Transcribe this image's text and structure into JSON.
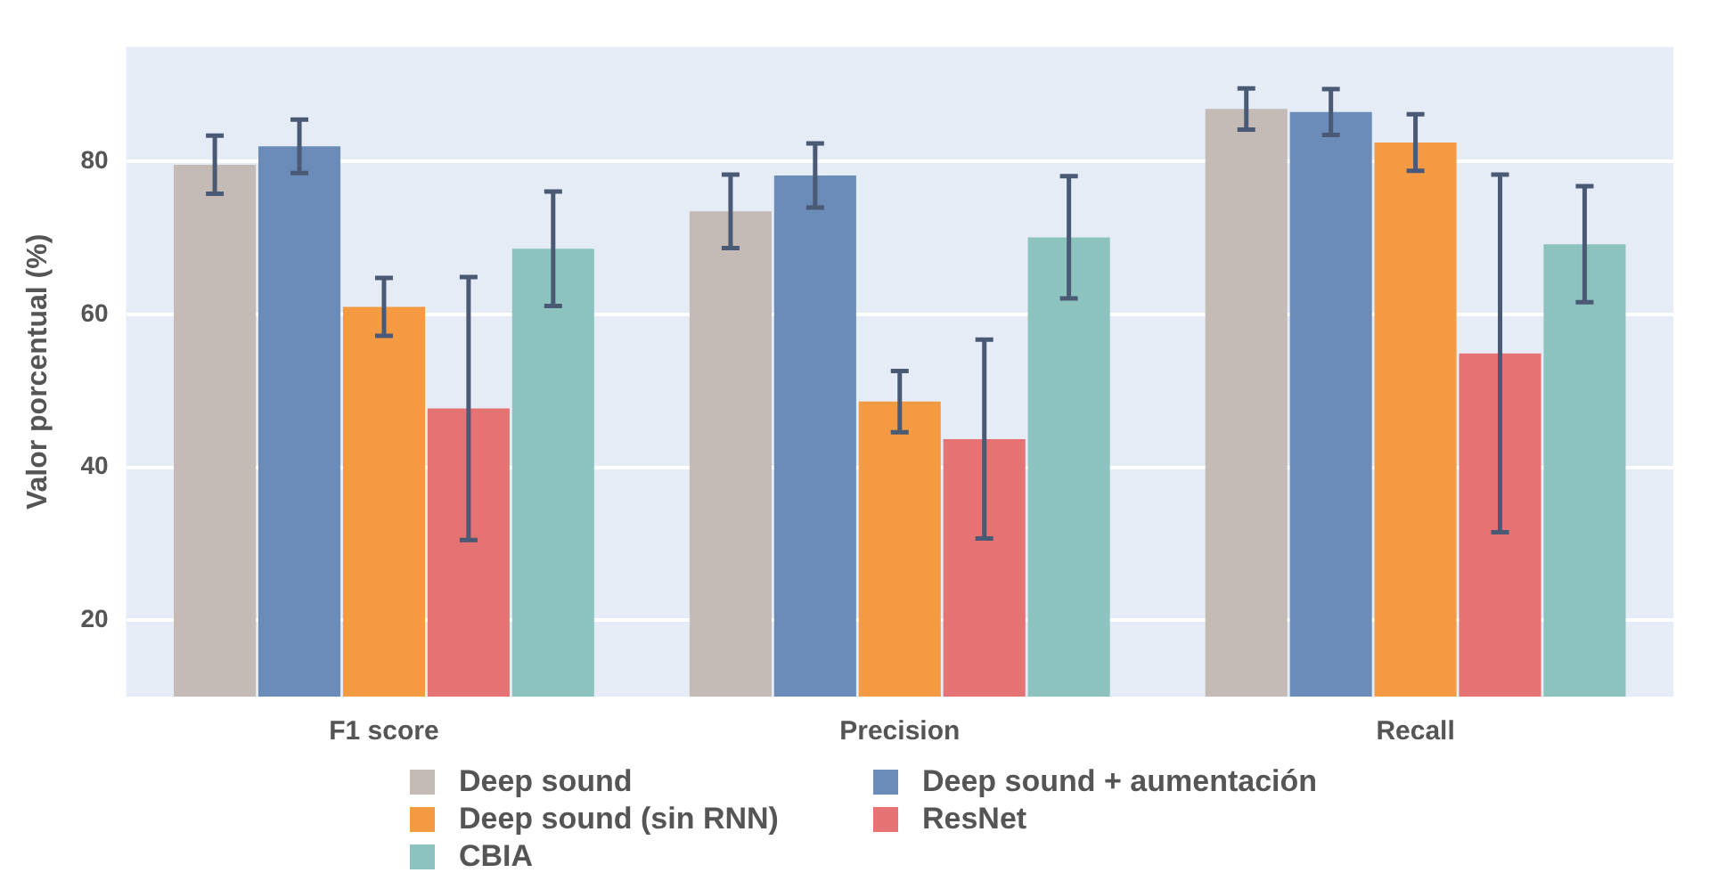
{
  "chart_data": {
    "type": "bar",
    "ylabel": "Valor porcentual (%)",
    "categories": [
      "F1 score",
      "Precision",
      "Recall"
    ],
    "series": [
      {
        "name": "Deep sound",
        "color": "#c4bab6",
        "values": [
          79.6,
          73.5,
          86.9
        ],
        "errors": [
          3.8,
          4.8,
          2.7
        ]
      },
      {
        "name": "Deep sound + aumentación",
        "color": "#6b8cb8",
        "values": [
          82,
          78.2,
          86.5
        ],
        "errors": [
          3.5,
          4.2,
          3
        ]
      },
      {
        "name": "Deep sound (sin RNN)",
        "color": "#f39a42",
        "values": [
          61,
          48.6,
          82.5
        ],
        "errors": [
          3.8,
          4,
          3.7
        ]
      },
      {
        "name": "ResNet",
        "color": "#e57373",
        "values": [
          47.7,
          43.7,
          54.9
        ],
        "errors": [
          17.2,
          13,
          23.4
        ]
      },
      {
        "name": "CBIA",
        "color": "#8cc3bf",
        "values": [
          68.6,
          70.1,
          69.2
        ],
        "errors": [
          7.5,
          8,
          7.6
        ]
      }
    ],
    "ylim": [
      10,
      95
    ],
    "yticks": [
      20,
      40,
      60,
      80
    ],
    "grid": "y",
    "legend": "bottom"
  }
}
